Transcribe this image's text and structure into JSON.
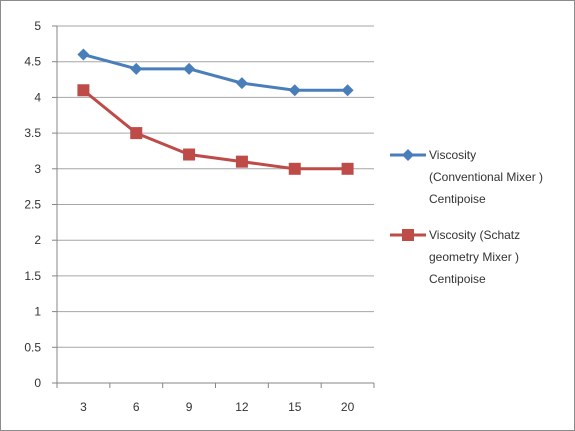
{
  "chart_data": {
    "type": "line",
    "categories": [
      "3",
      "6",
      "9",
      "12",
      "15",
      "20"
    ],
    "series": [
      {
        "name": "Viscosity (Conventional Mixer ) Centipoise",
        "legend_lines": [
          "Viscosity",
          "(Conventional Mixer )",
          "Centipoise"
        ],
        "values": [
          4.6,
          4.4,
          4.4,
          4.2,
          4.1,
          4.1
        ],
        "color": "#4a7ebb",
        "marker": "diamond"
      },
      {
        "name": "Viscosity (Schatz geometry Mixer ) Centipoise",
        "legend_lines": [
          "Viscosity (Schatz",
          "geometry Mixer )",
          "Centipoise"
        ],
        "values": [
          4.1,
          3.5,
          3.2,
          3.1,
          3.0,
          3.0
        ],
        "color": "#be4b48",
        "marker": "square"
      }
    ],
    "yticks": [
      "0",
      "0.5",
      "1",
      "1.5",
      "2",
      "2.5",
      "3",
      "3.5",
      "4",
      "4.5",
      "5"
    ],
    "ylim": [
      0,
      5
    ],
    "grid": true,
    "legend_position": "right"
  }
}
